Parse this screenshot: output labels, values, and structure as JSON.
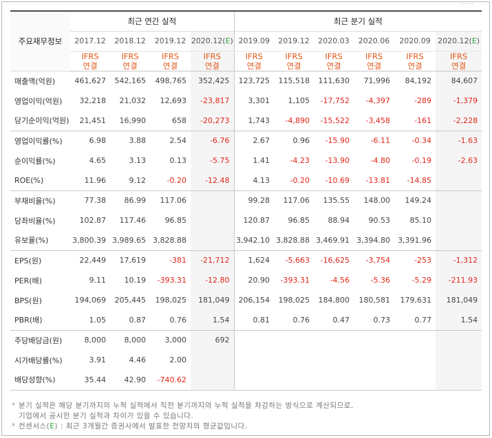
{
  "header": {
    "row_label": "주요재무정보",
    "annual_title": "최근 연간 실적",
    "quarter_title": "최근 분기 실적",
    "periods": [
      "2017.12",
      "2018.12",
      "2019.12",
      "2020.12(E)",
      "2019.09",
      "2019.12",
      "2020.03",
      "2020.06",
      "2020.09",
      "2020.12(E)"
    ],
    "ifrs_line1": "IFRS",
    "ifrs_line2": "연결"
  },
  "rows": [
    {
      "label": "매출액(억원)",
      "values": [
        "461,627",
        "542,165",
        "498,765",
        "352,425",
        "123,725",
        "115,518",
        "111,630",
        "71,996",
        "84,192",
        "84,607"
      ]
    },
    {
      "label": "영업이익(억원)",
      "values": [
        "32,218",
        "21,032",
        "12,693",
        "-23,817",
        "3,301",
        "1,105",
        "-17,752",
        "-4,397",
        "-289",
        "-1,379"
      ]
    },
    {
      "label": "당기순이익(억원)",
      "values": [
        "21,451",
        "16,990",
        "658",
        "-20,273",
        "1,743",
        "-4,890",
        "-15,522",
        "-3,458",
        "-161",
        "-2,228"
      ]
    },
    {
      "label": "영업이익률(%)",
      "values": [
        "6.98",
        "3.88",
        "2.54",
        "-6.76",
        "2.67",
        "0.96",
        "-15.90",
        "-6.11",
        "-0.34",
        "-1.63"
      ]
    },
    {
      "label": "순이익률(%)",
      "values": [
        "4.65",
        "3.13",
        "0.13",
        "-5.75",
        "1.41",
        "-4.23",
        "-13.90",
        "-4.80",
        "-0.19",
        "-2.63"
      ]
    },
    {
      "label": "ROE(%)",
      "values": [
        "11.96",
        "9.12",
        "-0.20",
        "-12.48",
        "4.13",
        "-0.20",
        "-10.69",
        "-13.81",
        "-14.85",
        ""
      ]
    },
    {
      "label": "부채비율(%)",
      "values": [
        "77.38",
        "86.99",
        "117.06",
        "",
        "99.28",
        "117.06",
        "135.55",
        "148.00",
        "149.24",
        ""
      ]
    },
    {
      "label": "당좌비율(%)",
      "values": [
        "102.87",
        "117.46",
        "96.85",
        "",
        "120.87",
        "96.85",
        "88.94",
        "90.53",
        "85.10",
        ""
      ]
    },
    {
      "label": "유보율(%)",
      "values": [
        "3,800.39",
        "3,989.65",
        "3,828.88",
        "",
        "3,942.10",
        "3,828.88",
        "3,469.91",
        "3,394.80",
        "3,391.96",
        ""
      ]
    },
    {
      "label": "EPS(원)",
      "values": [
        "22,449",
        "17,619",
        "-381",
        "-21,712",
        "1,624",
        "-5,663",
        "-16,625",
        "-3,754",
        "-253",
        "-1,312"
      ]
    },
    {
      "label": "PER(배)",
      "values": [
        "9.11",
        "10.19",
        "-393.31",
        "-12.80",
        "20.90",
        "-393.31",
        "-4.56",
        "-5.36",
        "-5.29",
        "-211.93"
      ]
    },
    {
      "label": "BPS(원)",
      "values": [
        "194,069",
        "205,445",
        "198,025",
        "181,049",
        "206,154",
        "198,025",
        "184,800",
        "180,581",
        "179,631",
        "181,049"
      ]
    },
    {
      "label": "PBR(배)",
      "values": [
        "1.05",
        "0.87",
        "0.76",
        "1.54",
        "0.81",
        "0.76",
        "0.47",
        "0.73",
        "0.77",
        "1.54"
      ]
    },
    {
      "label": "주당배당금(원)",
      "values": [
        "8,000",
        "8,000",
        "3,000",
        "692",
        "",
        "",
        "",
        "",
        "",
        ""
      ]
    },
    {
      "label": "시가배당률(%)",
      "values": [
        "3.91",
        "4.46",
        "2.00",
        "",
        "",
        "",
        "",
        "",
        "",
        ""
      ]
    },
    {
      "label": "배당성향(%)",
      "values": [
        "35.44",
        "42.90",
        "-740.62",
        "",
        "",
        "",
        "",
        "",
        "",
        ""
      ]
    }
  ],
  "notes": {
    "line1": "분기 실적은 해당 분기까지의 누적 실적에서 직전 분기까지의 누적 실적을 차감하는 방식으로 계산되므로,",
    "line2": "기업에서 공시한 분기 실적과 차이가 있을 수 있습니다.",
    "line3_prefix": "컨센서스(",
    "line3_mark": "E",
    "line3_suffix": ") : 최근 3개월간 증권사에서 발표한 전망치의 평균값입니다."
  },
  "colors": {
    "ifrs": "#e2591b",
    "negative": "#e0261b",
    "estimate_mark": "#2aa23a",
    "estimate_bg": "#f5f5f5"
  }
}
